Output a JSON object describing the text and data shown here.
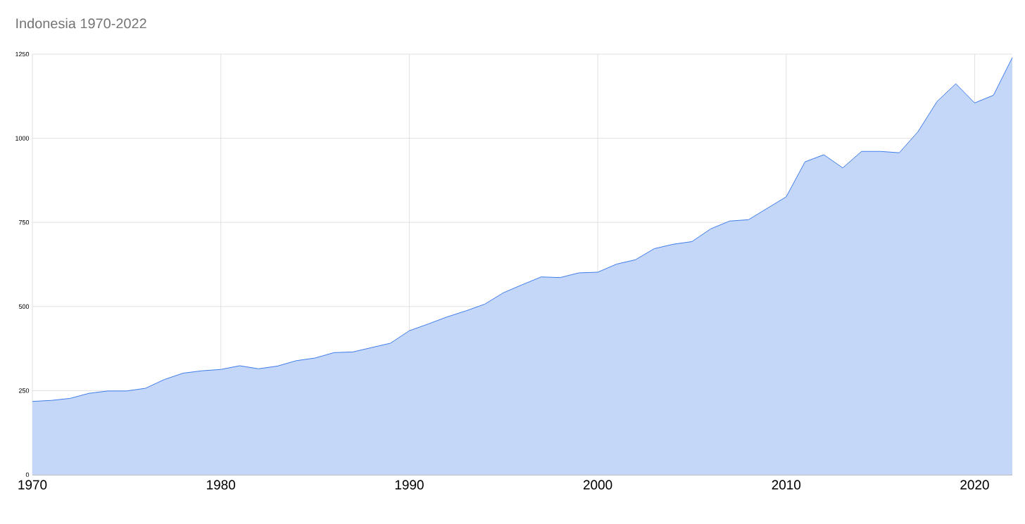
{
  "chart_data": {
    "type": "area",
    "title": "Indonesia 1970-2022",
    "x": [
      1970,
      1971,
      1972,
      1973,
      1974,
      1975,
      1976,
      1977,
      1978,
      1979,
      1980,
      1981,
      1982,
      1983,
      1984,
      1985,
      1986,
      1987,
      1988,
      1989,
      1990,
      1991,
      1992,
      1993,
      1994,
      1995,
      1996,
      1997,
      1998,
      1999,
      2000,
      2001,
      2002,
      2003,
      2004,
      2005,
      2006,
      2007,
      2008,
      2009,
      2010,
      2011,
      2012,
      2013,
      2014,
      2015,
      2016,
      2017,
      2018,
      2019,
      2020,
      2021,
      2022
    ],
    "values": [
      218,
      221,
      227,
      242,
      249,
      249,
      257,
      283,
      302,
      309,
      313,
      324,
      315,
      323,
      339,
      347,
      363,
      365,
      378,
      391,
      428,
      448,
      469,
      487,
      507,
      541,
      565,
      588,
      586,
      600,
      602,
      626,
      639,
      672,
      685,
      693,
      731,
      754,
      758,
      792,
      826,
      930,
      951,
      912,
      961,
      961,
      957,
      1020,
      1109,
      1162,
      1105,
      1128,
      1240
    ],
    "color": "#3d7bea",
    "xlim": [
      1970,
      2022
    ],
    "xticks": [
      1970,
      1980,
      1990,
      2000,
      2010,
      2020
    ],
    "ylim": [
      0,
      1250
    ],
    "yticks": [
      0,
      250,
      500,
      750,
      1000,
      1250
    ],
    "grid": true
  }
}
